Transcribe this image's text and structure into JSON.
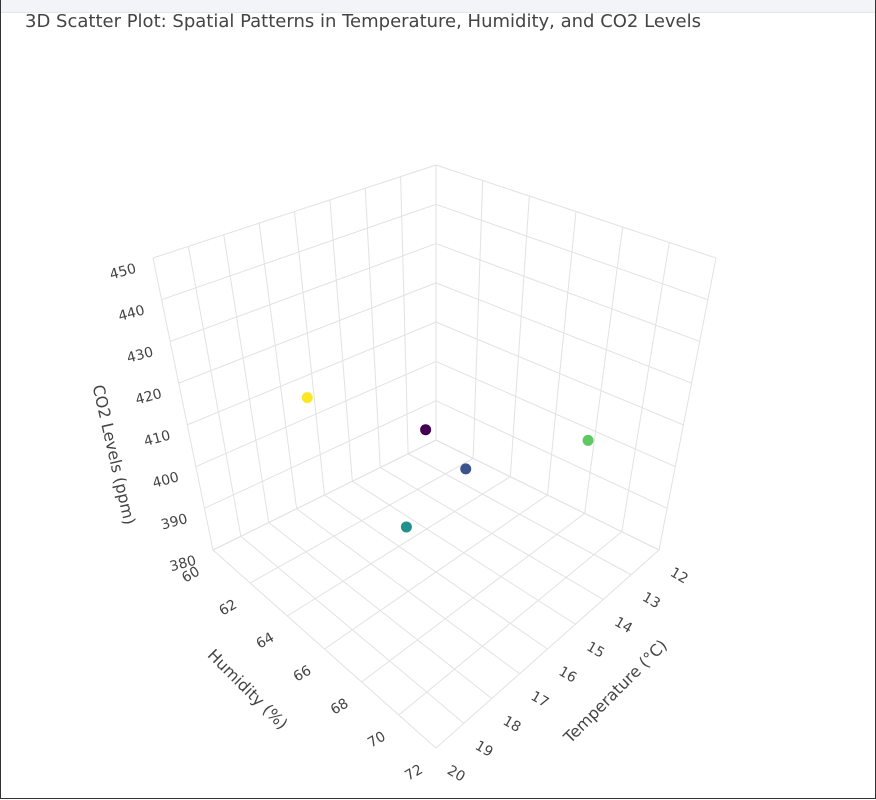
{
  "chart_data": {
    "type": "scatter3d",
    "title": "3D Scatter Plot: Spatial Patterns in Temperature, Humidity, and CO2 Levels",
    "x_label": "Temperature (°C)",
    "y_label": "Humidity (%)",
    "z_label": "CO2 Levels (ppm)",
    "x": [
      15,
      15,
      17,
      13,
      18
    ],
    "y": [
      64,
      66,
      66,
      69,
      63
    ],
    "z": [
      404,
      400,
      395,
      405,
      420
    ],
    "colors": [
      "#440154",
      "#3b528b",
      "#21918c",
      "#5ec962",
      "#fde725"
    ],
    "xlim": [
      12,
      20
    ],
    "xticks": [
      12,
      13,
      14,
      15,
      16,
      17,
      18,
      19,
      20
    ],
    "ylim": [
      60,
      72
    ],
    "yticks": [
      60,
      62,
      64,
      66,
      68,
      70,
      72
    ],
    "zlim": [
      380,
      450
    ],
    "zticks": [
      380,
      390,
      400,
      410,
      420,
      430,
      440,
      450
    ]
  }
}
